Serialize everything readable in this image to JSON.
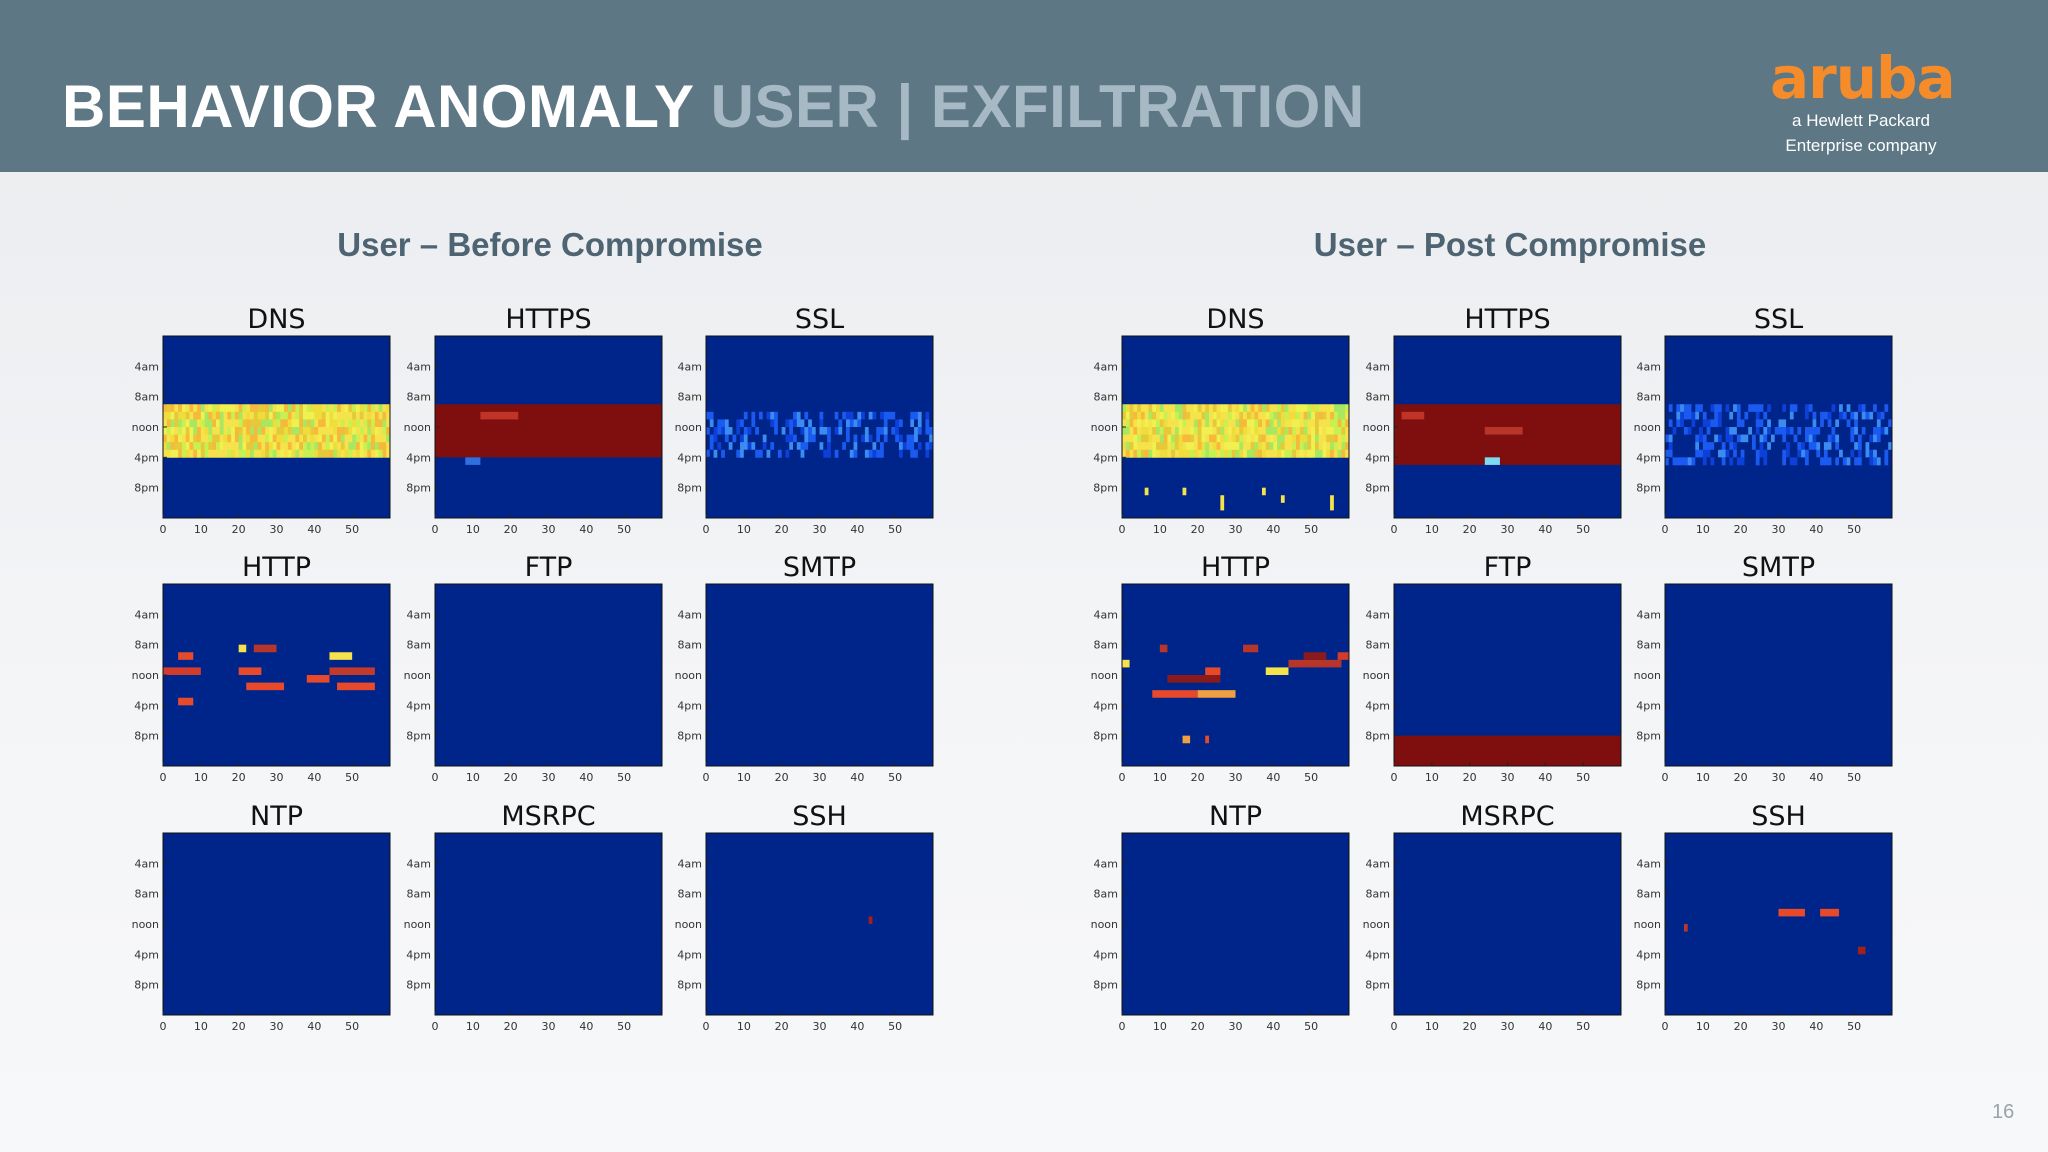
{
  "header": {
    "title_main": "BEHAVIOR ANOMALY",
    "title_sub": "USER | EXFILTRATION",
    "logo_word": "aruba",
    "logo_tag_line1": "a Hewlett Packard",
    "logo_tag_line2": "Enterprise company"
  },
  "groups": [
    {
      "title": "User – Before Compromise"
    },
    {
      "title": "User – Post Compromise"
    }
  ],
  "page_number": "16",
  "colors": {
    "background": "#00258a",
    "header": "#5d7785",
    "title_sub": "#a7b9c4",
    "logo": "#f68b2a"
  },
  "chart_data": [
    {
      "type": "heatmap",
      "group": "User – Before Compromise",
      "xticks": [
        "0",
        "10",
        "20",
        "30",
        "40",
        "50"
      ],
      "xlim": [
        0,
        60
      ],
      "yticks": [
        "4am",
        "8am",
        "noon",
        "4pm",
        "8pm"
      ],
      "ylim_hours": [
        0,
        24
      ],
      "colormap": "jet",
      "panels": [
        {
          "title": "DNS",
          "cells": [
            [
              0,
              60,
              9,
              16,
              "mixed_yellow"
            ]
          ]
        },
        {
          "title": "HTTPS",
          "cells": [
            [
              0,
              60,
              9,
              16,
              "#7f0e0e"
            ],
            [
              12,
              22,
              10,
              11,
              "#c03428"
            ],
            [
              8,
              12,
              16,
              17,
              "#2f6fe0"
            ]
          ]
        },
        {
          "title": "SSL",
          "cells": [
            [
              0,
              60,
              10,
              16,
              "mixed_blue"
            ]
          ]
        },
        {
          "title": "HTTP",
          "cells": [
            [
              4,
              8,
              9,
              10,
              "#e64a2a"
            ],
            [
              0,
              10,
              11,
              12,
              "#d33b2b"
            ],
            [
              20,
              22,
              8,
              9,
              "#f6e24a"
            ],
            [
              24,
              30,
              8,
              9,
              "#b8352a"
            ],
            [
              44,
              50,
              9,
              10,
              "#f6e24a"
            ],
            [
              20,
              26,
              11,
              12,
              "#e64a2a"
            ],
            [
              22,
              32,
              13,
              14,
              "#e64a2a"
            ],
            [
              38,
              44,
              12,
              13,
              "#e64a2a"
            ],
            [
              44,
              56,
              11,
              12,
              "#c43a2a"
            ],
            [
              46,
              56,
              13,
              14,
              "#e64a2a"
            ],
            [
              4,
              8,
              15,
              16,
              "#e64a2a"
            ]
          ]
        },
        {
          "title": "FTP",
          "cells": []
        },
        {
          "title": "SMTP",
          "cells": []
        },
        {
          "title": "NTP",
          "cells": []
        },
        {
          "title": "MSRPC",
          "cells": []
        },
        {
          "title": "SSH",
          "cells": [
            [
              43,
              44,
              11,
              12,
              "#a0201a"
            ]
          ]
        }
      ]
    },
    {
      "type": "heatmap",
      "group": "User – Post Compromise",
      "xticks": [
        "0",
        "10",
        "20",
        "30",
        "40",
        "50"
      ],
      "xlim": [
        0,
        60
      ],
      "yticks": [
        "4am",
        "8am",
        "noon",
        "4pm",
        "8pm"
      ],
      "ylim_hours": [
        0,
        24
      ],
      "colormap": "jet",
      "panels": [
        {
          "title": "DNS",
          "cells": [
            [
              0,
              60,
              9,
              16,
              "mixed_yellow"
            ],
            [
              6,
              7,
              20,
              21,
              "#f6e24a"
            ],
            [
              16,
              17,
              20,
              21,
              "#f6e24a"
            ],
            [
              26,
              27,
              21,
              23,
              "#f6e24a"
            ],
            [
              37,
              38,
              20,
              21,
              "#f6e24a"
            ],
            [
              42,
              43,
              21,
              22,
              "#f6e24a"
            ],
            [
              55,
              56,
              21,
              23,
              "#f6e24a"
            ]
          ]
        },
        {
          "title": "HTTPS",
          "cells": [
            [
              0,
              60,
              9,
              17,
              "#7f0e0e"
            ],
            [
              2,
              8,
              10,
              11,
              "#c03428"
            ],
            [
              24,
              34,
              12,
              13,
              "#b8352a"
            ],
            [
              24,
              28,
              16,
              17,
              "#7fd9f0"
            ]
          ]
        },
        {
          "title": "SSL",
          "cells": [
            [
              0,
              60,
              9,
              17,
              "mixed_blue"
            ]
          ]
        },
        {
          "title": "HTTP",
          "cells": [
            [
              10,
              12,
              8,
              9,
              "#b8352a"
            ],
            [
              0,
              2,
              10,
              11,
              "#f6e24a"
            ],
            [
              12,
              26,
              12,
              13,
              "#8b1a1a"
            ],
            [
              22,
              26,
              11,
              12,
              "#e64a2a"
            ],
            [
              32,
              36,
              8,
              9,
              "#b8352a"
            ],
            [
              38,
              44,
              11,
              12,
              "#f6e24a"
            ],
            [
              44,
              58,
              10,
              11,
              "#b8352a"
            ],
            [
              48,
              54,
              9,
              10,
              "#8b1a1a"
            ],
            [
              8,
              20,
              14,
              15,
              "#e64a2a"
            ],
            [
              20,
              30,
              14,
              15,
              "#f0a040"
            ],
            [
              16,
              18,
              20,
              21,
              "#f0a040"
            ],
            [
              22,
              23,
              20,
              21,
              "#e64a2a"
            ],
            [
              57,
              60,
              9,
              10,
              "#d33b2b"
            ]
          ]
        },
        {
          "title": "FTP",
          "cells": [
            [
              0,
              60,
              20,
              24,
              "#7f0e0e"
            ]
          ]
        },
        {
          "title": "SMTP",
          "cells": []
        },
        {
          "title": "NTP",
          "cells": []
        },
        {
          "title": "MSRPC",
          "cells": []
        },
        {
          "title": "SSH",
          "cells": [
            [
              30,
              37,
              10,
              11,
              "#e64a2a"
            ],
            [
              41,
              46,
              10,
              11,
              "#e64a2a"
            ],
            [
              5,
              6,
              12,
              13,
              "#b8352a"
            ],
            [
              51,
              53,
              15,
              16,
              "#a0201a"
            ]
          ]
        }
      ]
    }
  ]
}
